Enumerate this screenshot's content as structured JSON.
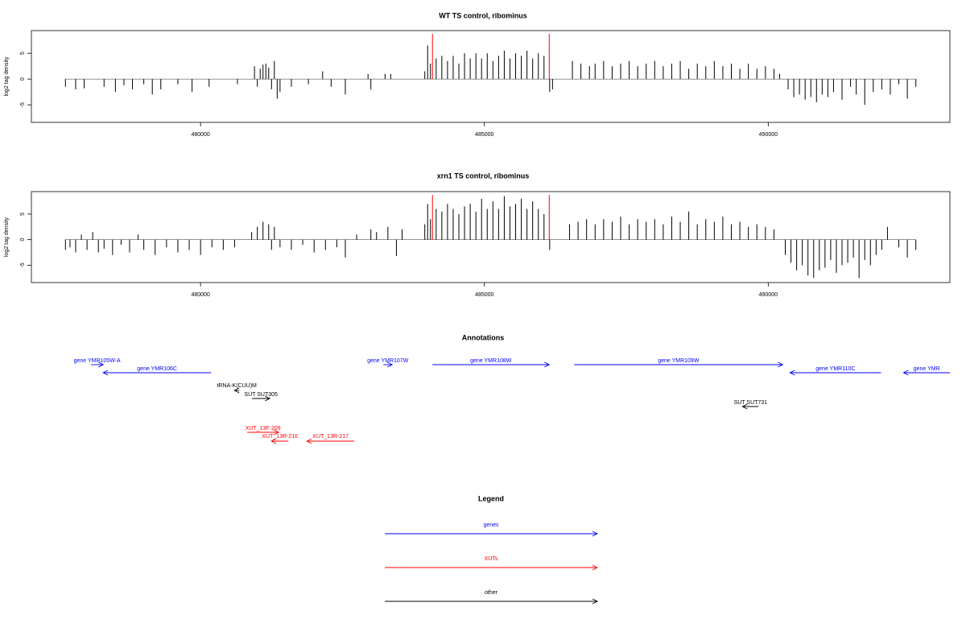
{
  "chart_data": [
    {
      "type": "bar",
      "title": "WT TS control, ribominus",
      "y_label": "log2 tag density",
      "color": "#000000",
      "xlim": [
        477020,
        493200
      ],
      "ylim": [
        -8.4,
        9.4
      ],
      "xticks": [
        480000,
        485000,
        490000
      ],
      "yticks": [
        -5,
        0,
        5
      ],
      "x": [
        477620,
        477800,
        477950,
        478300,
        478500,
        478650,
        478800,
        479000,
        479150,
        479300,
        479600,
        479850,
        480150,
        480650,
        480950,
        481000,
        481050,
        481100,
        481150,
        481200,
        481250,
        481300,
        481350,
        481400,
        481600,
        481900,
        482150,
        482300,
        482550,
        482950,
        483000,
        483250,
        483350,
        483950,
        484000,
        484050,
        484150,
        484250,
        484350,
        484450,
        484550,
        484650,
        484750,
        484850,
        484950,
        485050,
        485150,
        485250,
        485350,
        485450,
        485550,
        485650,
        485750,
        485850,
        485950,
        486050,
        486150,
        486200,
        486550,
        486700,
        486850,
        486950,
        487100,
        487250,
        487400,
        487550,
        487700,
        487850,
        488000,
        488150,
        488300,
        488450,
        488600,
        488750,
        488900,
        489050,
        489200,
        489350,
        489500,
        489650,
        489800,
        489950,
        490100,
        490200,
        490350,
        490450,
        490550,
        490650,
        490750,
        490850,
        490950,
        491050,
        491150,
        491300,
        491450,
        491550,
        491700,
        491850,
        492000,
        492150,
        492300,
        492450,
        492600
      ],
      "values": [
        -1.5,
        -2,
        -1.8,
        -1.5,
        -2.5,
        -1.2,
        -2,
        -1,
        -3,
        -2,
        -1,
        -2.5,
        -1.5,
        -1,
        2.5,
        -1.5,
        2,
        2.8,
        3,
        2.2,
        -2,
        3.5,
        -3.8,
        -2.5,
        -1.5,
        -1,
        1.5,
        -1.5,
        -3,
        1,
        -2,
        1,
        1,
        1.5,
        6.5,
        3,
        4,
        4.5,
        3.5,
        4.5,
        3,
        5,
        4,
        5,
        4,
        5,
        3.5,
        4.5,
        5.5,
        4,
        5,
        4.5,
        5.5,
        4,
        5,
        4.5,
        -2.5,
        -2,
        3.5,
        3,
        2.5,
        3,
        3.5,
        2.5,
        3,
        3.5,
        2.5,
        3,
        3.5,
        2.5,
        3,
        3.5,
        2,
        3,
        2.5,
        3.5,
        2.5,
        3,
        2,
        3,
        2,
        2.5,
        2,
        1,
        -2,
        -3.5,
        -3,
        -4,
        -3.5,
        -4.5,
        -3,
        -3.5,
        -2.5,
        -4,
        -1.5,
        -3,
        -5,
        -2.5,
        -2,
        -3,
        -1,
        -3.8,
        -1.5
      ],
      "markers": {
        "x": [
          484085,
          486142
        ],
        "values": [
          8.75,
          8.75
        ],
        "color": "#ff0000"
      }
    },
    {
      "type": "bar",
      "title": "xrn1 TS control, ribominus",
      "y_label": "log2 tag density",
      "color": "#000000",
      "xlim": [
        477020,
        493200
      ],
      "ylim": [
        -8.4,
        9.4
      ],
      "xticks": [
        480000,
        485000,
        490000
      ],
      "yticks": [
        -5,
        0,
        5
      ],
      "x": [
        477620,
        477700,
        477800,
        477900,
        478000,
        478100,
        478200,
        478300,
        478450,
        478600,
        478750,
        478900,
        479000,
        479200,
        479400,
        479600,
        479800,
        480000,
        480200,
        480400,
        480600,
        480900,
        481000,
        481100,
        481200,
        481250,
        481300,
        481400,
        481600,
        481800,
        482000,
        482200,
        482400,
        482550,
        482750,
        483000,
        483100,
        483300,
        483450,
        483550,
        483950,
        484000,
        484050,
        484150,
        484250,
        484350,
        484450,
        484550,
        484650,
        484750,
        484850,
        484950,
        485050,
        485150,
        485250,
        485350,
        485450,
        485550,
        485650,
        485750,
        485850,
        485950,
        486050,
        486150,
        486500,
        486650,
        486800,
        486950,
        487100,
        487250,
        487400,
        487550,
        487700,
        487850,
        488000,
        488150,
        488300,
        488450,
        488600,
        488750,
        488900,
        489050,
        489200,
        489350,
        489500,
        489650,
        489800,
        489950,
        490100,
        490300,
        490400,
        490500,
        490600,
        490700,
        490800,
        490900,
        491000,
        491100,
        491200,
        491300,
        491400,
        491500,
        491600,
        491700,
        491800,
        491900,
        492000,
        492100,
        492300,
        492450,
        492600
      ],
      "values": [
        -2,
        -1.5,
        -2.5,
        1,
        -2,
        1.5,
        -2.5,
        -1.8,
        -3,
        -1,
        -2.5,
        1,
        -2,
        -3,
        -1.5,
        -2.5,
        -2,
        -3,
        -1.5,
        -2,
        -1.5,
        1.5,
        2.5,
        3.5,
        3,
        -2,
        2.5,
        -1.5,
        -2,
        -1,
        -2.5,
        -2,
        -1.5,
        -3.5,
        1,
        2,
        1.5,
        2.5,
        -3.2,
        2,
        3,
        7,
        4,
        6,
        5.5,
        7,
        6,
        5,
        6.5,
        7,
        5.5,
        8,
        6,
        7.5,
        6,
        8.5,
        6.5,
        7,
        8,
        6,
        7.5,
        6,
        5,
        -2,
        3,
        3.5,
        4,
        3,
        4,
        3.5,
        4.5,
        3,
        4,
        3.5,
        4,
        3,
        4.5,
        3.5,
        5.5,
        3,
        4,
        3.5,
        4.5,
        3,
        3.5,
        2.5,
        3,
        2.5,
        2,
        -3,
        -4.5,
        -6,
        -5,
        -7,
        -7.5,
        -6,
        -5.5,
        -4,
        -6.5,
        -5,
        -4.5,
        -3.5,
        -7.5,
        -4,
        -5,
        -3,
        -2,
        2.5,
        -1.5,
        -3.5,
        -2
      ],
      "markers": {
        "x": [
          484085,
          486142
        ],
        "values": [
          8.75,
          8.75
        ],
        "color": "#ff0000"
      }
    }
  ],
  "annotations": {
    "title": "Annotations",
    "features": [
      {
        "label": "gene YMR105W-A",
        "start": 478071,
        "end": 478284,
        "strand": "+",
        "color": "#0000ff"
      },
      {
        "label": "gene YMR106C",
        "start": 478284,
        "end": 480184,
        "strand": "-",
        "color": "#0000ff"
      },
      {
        "label": "tRNA-K(CUU)M",
        "start": 480596,
        "end": 480681,
        "strand": "-",
        "color": "#000000"
      },
      {
        "label": "SUT SUT305",
        "start": 480908,
        "end": 481220,
        "strand": "+",
        "color": "#000000"
      },
      {
        "label": "gene YMR107W",
        "start": 483220,
        "end": 483376,
        "strand": "+",
        "color": "#0000ff"
      },
      {
        "label": "gene YMR108W",
        "start": 484085,
        "end": 486142,
        "strand": "+",
        "color": "#0000ff"
      },
      {
        "label": "gene YMR109W",
        "start": 486582,
        "end": 490255,
        "strand": "+",
        "color": "#0000ff"
      },
      {
        "label": "gene YMR110C",
        "start": 490383,
        "end": 491986,
        "strand": "-",
        "color": "#0000ff"
      },
      {
        "label": "gene YMR",
        "start": 492383,
        "end": 493200,
        "strand": "-",
        "color": "#0000ff"
      },
      {
        "label": "SUT SUT731",
        "start": 489546,
        "end": 489830,
        "strand": "-",
        "color": "#000000"
      },
      {
        "label": "XUT_13F-209",
        "start": 480823,
        "end": 481376,
        "strand": "+",
        "color": "#ff0000"
      },
      {
        "label": "XUT_13R-216",
        "start": 481248,
        "end": 481546,
        "strand": "-",
        "color": "#ff0000"
      },
      {
        "label": "XUT_13R-217",
        "start": 481872,
        "end": 482709,
        "strand": "-",
        "color": "#ff0000"
      }
    ]
  },
  "legend": {
    "title": "Legend",
    "entries": [
      {
        "label": "genes",
        "color": "#0000ff"
      },
      {
        "label": "XUTs",
        "color": "#ff0000"
      },
      {
        "label": "other",
        "color": "#000000"
      }
    ]
  }
}
